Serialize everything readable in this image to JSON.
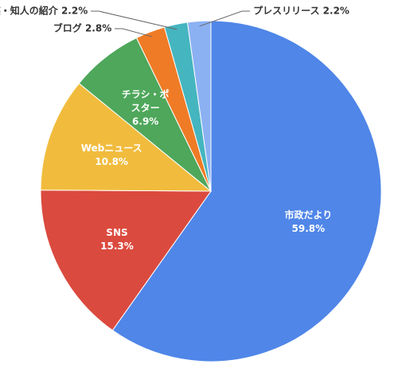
{
  "chart_data": {
    "type": "pie",
    "categories": [
      "市政だより",
      "SNS",
      "Webニュース",
      "チラシ・ポスター",
      "ブログ",
      "家族・知人の紹介",
      "プレスリリース"
    ],
    "values": [
      59.8,
      15.3,
      10.8,
      6.9,
      2.8,
      2.2,
      2.2
    ],
    "value_labels": [
      "59.8%",
      "15.3%",
      "10.8%",
      "6.9%",
      "2.8%",
      "2.2%",
      "2.2%"
    ],
    "colors": [
      "#4f86e8",
      "#db4a3e",
      "#f1bc3d",
      "#4ea75b",
      "#ef7b26",
      "#45b5c0",
      "#8cb1f3"
    ]
  }
}
